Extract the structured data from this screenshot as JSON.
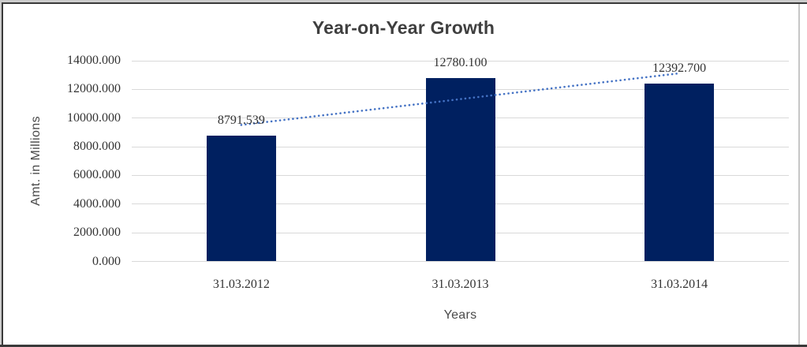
{
  "chart_data": {
    "type": "bar",
    "title": "Year-on-Year Growth",
    "xlabel": "Years",
    "ylabel": "Amt. in Millions",
    "categories": [
      "31.03.2012",
      "31.03.2013",
      "31.03.2014"
    ],
    "values": [
      8791.539,
      12780.1,
      12392.7
    ],
    "data_labels": [
      "8791.539",
      "12780.100",
      "12392.700"
    ],
    "ylim": [
      0,
      14000
    ],
    "ytick_step": 2000,
    "ytick_labels": [
      "0.000",
      "2000.000",
      "4000.000",
      "6000.000",
      "8000.000",
      "10000.000",
      "12000.000",
      "14000.000"
    ],
    "grid": true,
    "legend": "none",
    "bar_color": "#002060",
    "gridline_color": "#d9d9d9",
    "trendline": {
      "type": "linear",
      "style": "dotted",
      "color": "#4472c4",
      "start_value": 9520.9,
      "end_value": 13122.0
    }
  }
}
